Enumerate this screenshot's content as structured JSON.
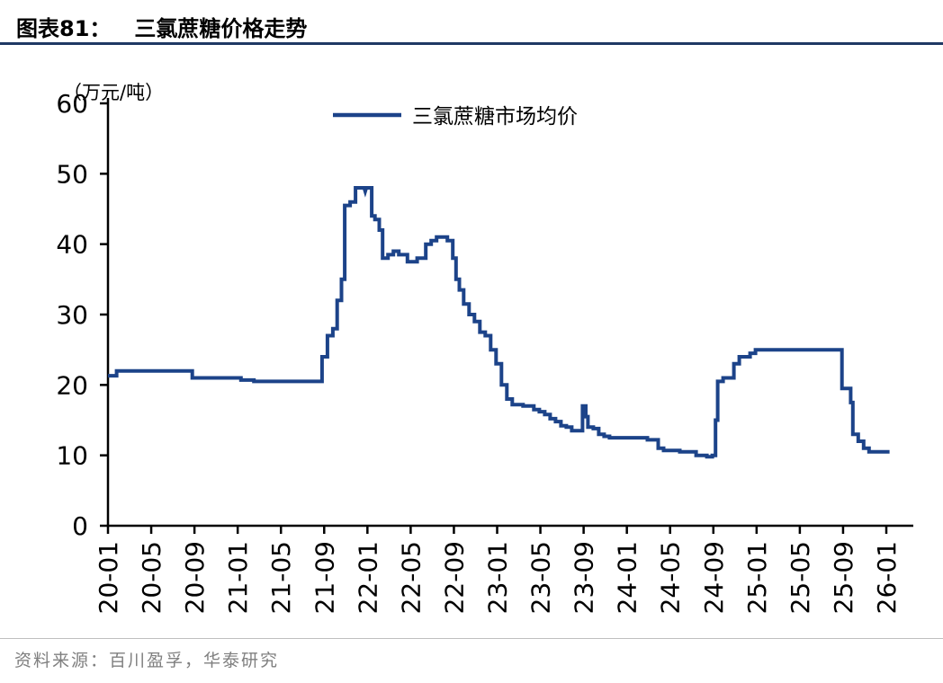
{
  "page": {
    "figure_label": "图表81：",
    "figure_title": "三氯蔗糖价格走势",
    "source": "资料来源：百川盈孚，华泰研究"
  },
  "theme": {
    "line_color": "#1c4389",
    "title_rule_color": "#1f3864",
    "source_color": "#7f7f7f",
    "divider_color": "#bfbfbf",
    "axis_color": "#000000"
  },
  "chart_data": {
    "type": "line",
    "title": "三氯蔗糖价格走势",
    "unit_label": "（万元/吨）",
    "legend_position": "top-center",
    "grid": false,
    "legend": [
      {
        "label": "三氯蔗糖市场均价",
        "color": "#1c4389"
      }
    ],
    "ylim": [
      0,
      60
    ],
    "yticks": [
      0,
      10,
      20,
      30,
      40,
      50,
      60
    ],
    "x_month_max": 72,
    "xtick_interval_months": 4,
    "xtick_labels": [
      "20-01",
      "20-05",
      "20-09",
      "21-01",
      "21-05",
      "21-09",
      "22-01",
      "22-05",
      "22-09",
      "23-01",
      "23-05",
      "23-09",
      "24-01",
      "24-05",
      "24-09",
      "25-01",
      "25-05",
      "25-09",
      "26-01"
    ],
    "series": [
      {
        "name": "三氯蔗糖市场均价",
        "unit": "万元/吨",
        "x_unit": "months since 2020-01",
        "points": [
          [
            0,
            21.3
          ],
          [
            0.8,
            21.3
          ],
          [
            0.8,
            22
          ],
          [
            7.8,
            22
          ],
          [
            7.8,
            21
          ],
          [
            12.3,
            21
          ],
          [
            12.3,
            20.7
          ],
          [
            13.5,
            20.7
          ],
          [
            13.5,
            20.5
          ],
          [
            19.8,
            20.5
          ],
          [
            19.8,
            24
          ],
          [
            20.3,
            24
          ],
          [
            20.3,
            27
          ],
          [
            20.8,
            27
          ],
          [
            20.8,
            28
          ],
          [
            21.2,
            28
          ],
          [
            21.2,
            32
          ],
          [
            21.6,
            32
          ],
          [
            21.6,
            35
          ],
          [
            21.9,
            35
          ],
          [
            21.9,
            45.5
          ],
          [
            22.4,
            45.5
          ],
          [
            22.4,
            46
          ],
          [
            22.9,
            46
          ],
          [
            22.9,
            48
          ],
          [
            23.7,
            48
          ],
          [
            23.8,
            47.5
          ],
          [
            23.9,
            48
          ],
          [
            24.4,
            48
          ],
          [
            24.4,
            44
          ],
          [
            24.7,
            44
          ],
          [
            24.7,
            43.5
          ],
          [
            25.1,
            43.5
          ],
          [
            25.1,
            42
          ],
          [
            25.4,
            42
          ],
          [
            25.4,
            38
          ],
          [
            25.9,
            38
          ],
          [
            25.9,
            38.5
          ],
          [
            26.4,
            38.5
          ],
          [
            26.4,
            39
          ],
          [
            26.9,
            39
          ],
          [
            26.9,
            38.5
          ],
          [
            27.7,
            38.5
          ],
          [
            27.7,
            37.5
          ],
          [
            28.6,
            37.5
          ],
          [
            28.6,
            38
          ],
          [
            29.4,
            38
          ],
          [
            29.4,
            40
          ],
          [
            29.9,
            40
          ],
          [
            29.9,
            40.5
          ],
          [
            30.4,
            40.5
          ],
          [
            30.4,
            41
          ],
          [
            31.4,
            41
          ],
          [
            31.4,
            40.5
          ],
          [
            31.9,
            40.5
          ],
          [
            31.9,
            38
          ],
          [
            32.2,
            38
          ],
          [
            32.2,
            35
          ],
          [
            32.5,
            35
          ],
          [
            32.5,
            33.5
          ],
          [
            32.9,
            33.5
          ],
          [
            32.9,
            31.5
          ],
          [
            33.4,
            31.5
          ],
          [
            33.4,
            30
          ],
          [
            33.9,
            30
          ],
          [
            33.9,
            29
          ],
          [
            34.4,
            29
          ],
          [
            34.4,
            27.5
          ],
          [
            34.9,
            27.5
          ],
          [
            34.9,
            27
          ],
          [
            35.4,
            27
          ],
          [
            35.4,
            25
          ],
          [
            35.9,
            25
          ],
          [
            35.9,
            23
          ],
          [
            36.4,
            23
          ],
          [
            36.4,
            20
          ],
          [
            36.9,
            20
          ],
          [
            36.9,
            18
          ],
          [
            37.4,
            18
          ],
          [
            37.4,
            17.2
          ],
          [
            38.4,
            17.2
          ],
          [
            38.4,
            17
          ],
          [
            39.4,
            17
          ],
          [
            39.4,
            16.5
          ],
          [
            39.9,
            16.5
          ],
          [
            39.9,
            16.2
          ],
          [
            40.4,
            16.2
          ],
          [
            40.4,
            15.8
          ],
          [
            40.9,
            15.8
          ],
          [
            40.9,
            15.2
          ],
          [
            41.4,
            15.2
          ],
          [
            41.4,
            14.8
          ],
          [
            41.9,
            14.8
          ],
          [
            41.9,
            14.2
          ],
          [
            42.4,
            14.2
          ],
          [
            42.4,
            14
          ],
          [
            42.9,
            14
          ],
          [
            42.9,
            13.5
          ],
          [
            43.9,
            13.5
          ],
          [
            43.9,
            17
          ],
          [
            44.2,
            17
          ],
          [
            44.2,
            15.5
          ],
          [
            44.4,
            15.5
          ],
          [
            44.4,
            14
          ],
          [
            44.9,
            14
          ],
          [
            44.9,
            13.8
          ],
          [
            45.4,
            13.8
          ],
          [
            45.4,
            13
          ],
          [
            45.9,
            13
          ],
          [
            45.9,
            12.7
          ],
          [
            46.4,
            12.7
          ],
          [
            46.4,
            12.5
          ],
          [
            49.9,
            12.5
          ],
          [
            49.9,
            12.2
          ],
          [
            50.9,
            12.2
          ],
          [
            50.9,
            11
          ],
          [
            51.4,
            11
          ],
          [
            51.4,
            10.7
          ],
          [
            52.9,
            10.7
          ],
          [
            52.9,
            10.5
          ],
          [
            54.4,
            10.5
          ],
          [
            54.4,
            10
          ],
          [
            55.4,
            10
          ],
          [
            55.4,
            9.8
          ],
          [
            55.9,
            9.8
          ],
          [
            55.9,
            10
          ],
          [
            56.2,
            10
          ],
          [
            56.2,
            15
          ],
          [
            56.4,
            15
          ],
          [
            56.4,
            20.5
          ],
          [
            56.9,
            20.5
          ],
          [
            56.9,
            21
          ],
          [
            57.9,
            21
          ],
          [
            57.9,
            23
          ],
          [
            58.4,
            23
          ],
          [
            58.4,
            24
          ],
          [
            59.4,
            24
          ],
          [
            59.4,
            24.5
          ],
          [
            59.9,
            24.5
          ],
          [
            59.9,
            25
          ],
          [
            67.9,
            25
          ],
          [
            67.9,
            19.5
          ],
          [
            68.7,
            19.5
          ],
          [
            68.7,
            17.5
          ],
          [
            68.9,
            17.5
          ],
          [
            68.9,
            13
          ],
          [
            69.4,
            13
          ],
          [
            69.4,
            12
          ],
          [
            69.9,
            12
          ],
          [
            69.9,
            11
          ],
          [
            70.4,
            11
          ],
          [
            70.4,
            10.5
          ],
          [
            72.3,
            10.5
          ]
        ]
      }
    ]
  }
}
